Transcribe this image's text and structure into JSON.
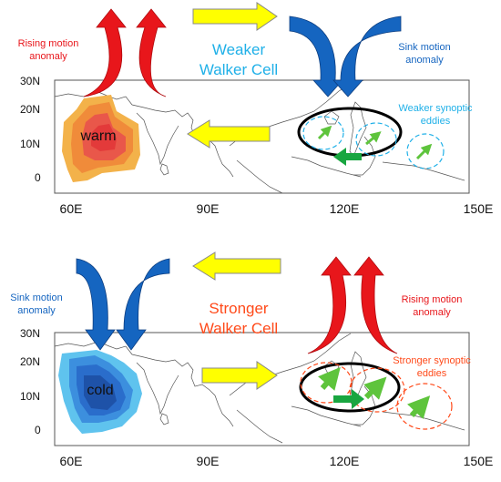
{
  "top": {
    "lat_labels": [
      "30N",
      "20N",
      "10N",
      "0"
    ],
    "lon_labels": [
      "60E",
      "90E",
      "120E",
      "150E"
    ],
    "cell_line1": "Weaker",
    "cell_line2": "Walker Cell",
    "left_line1": "Rising motion",
    "left_line2": "anomaly",
    "right_line1": "Sink motion",
    "right_line2": "anomaly",
    "eddies_line1": "Weaker synoptic",
    "eddies_line2": "eddies",
    "sst_label": "warm"
  },
  "bottom": {
    "lat_labels": [
      "30N",
      "20N",
      "10N",
      "0"
    ],
    "lon_labels": [
      "60E",
      "90E",
      "120E",
      "150E"
    ],
    "cell_line1": "Stronger",
    "cell_line2": "Walker Cell",
    "left_line1": "Sink motion",
    "left_line2": "anomaly",
    "right_line1": "Rising motion",
    "right_line2": "anomaly",
    "eddies_line1": "Stronger synoptic",
    "eddies_line2": "eddies",
    "sst_label": "cold"
  },
  "colors": {
    "rising": "#e8161b",
    "sinking": "#1565c0",
    "walker_flow": "#ffff00",
    "weaker_accent": "#1fb0e8",
    "stronger_accent": "#ff4a1a",
    "eddy": "#5ec43c",
    "flow_green": "#19a640"
  }
}
